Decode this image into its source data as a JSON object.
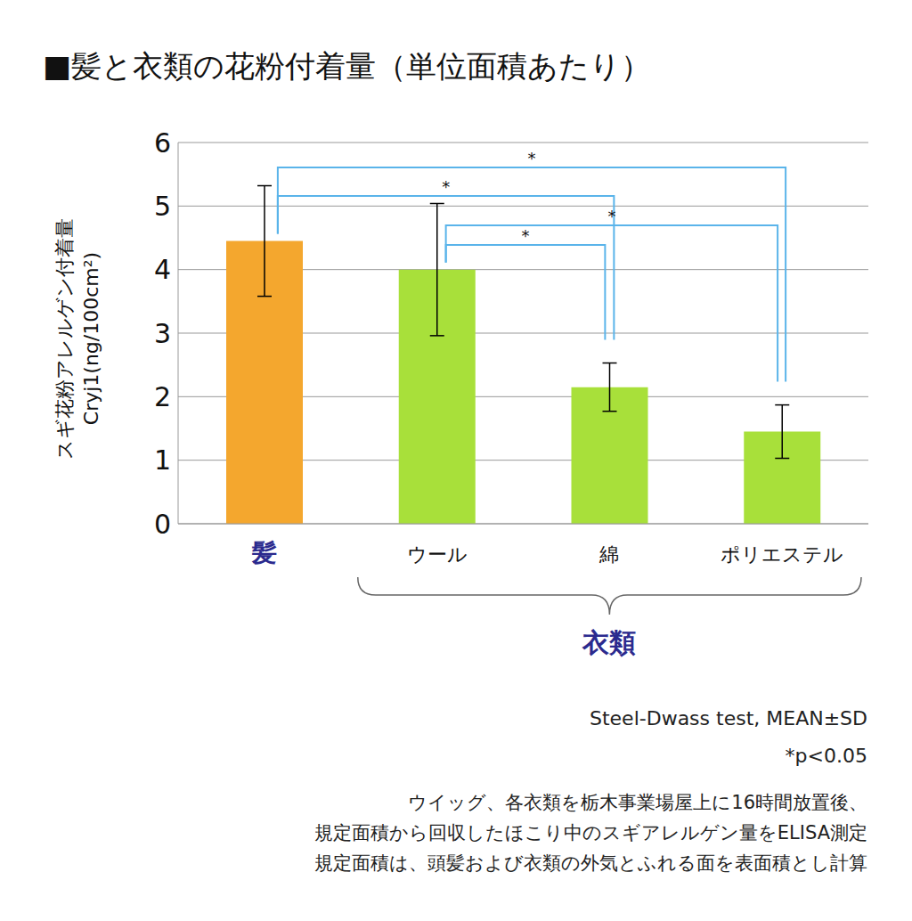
{
  "chart_data": {
    "type": "bar",
    "title": "■髪と衣類の花粉付着量（単位面積あたり）",
    "y_label": [
      "スギ花粉アレルゲン付着量",
      "Cryj1(ng/100cm²)"
    ],
    "categories": [
      "髪",
      "ウール",
      "綿",
      "ポリエステル"
    ],
    "values": [
      4.45,
      4.0,
      2.15,
      1.45
    ],
    "errors": [
      0.87,
      1.04,
      0.38,
      0.42
    ],
    "colors": [
      "#f4a72e",
      "#a8e03a",
      "#a8e03a",
      "#a8e03a"
    ],
    "ylim": [
      0,
      6
    ],
    "yticks": [
      0,
      1,
      2,
      3,
      4,
      5,
      6
    ],
    "grid": true,
    "group": {
      "label": "衣類",
      "categories": [
        "ウール",
        "綿",
        "ポリエステル"
      ]
    },
    "comparisons": [
      {
        "from": "髪",
        "to": "ポリエステル",
        "label": "*"
      },
      {
        "from": "髪",
        "to": "綿",
        "label": "*"
      },
      {
        "from": "ウール",
        "to": "ポリエステル",
        "label": "*"
      },
      {
        "from": "ウール",
        "to": "綿",
        "label": "*"
      }
    ],
    "notes": [
      "Steel-Dwass test, MEAN±SD",
      "*p<0.05"
    ],
    "footnotes": [
      "ウイッグ、各衣類を栃木事業場屋上に16時間放置後、",
      "規定面積から回収したほこり中のスギアレルゲン量をELISA測定",
      "規定面積は、頭髪および衣類の外気とふれる面を表面積とし計算"
    ]
  }
}
